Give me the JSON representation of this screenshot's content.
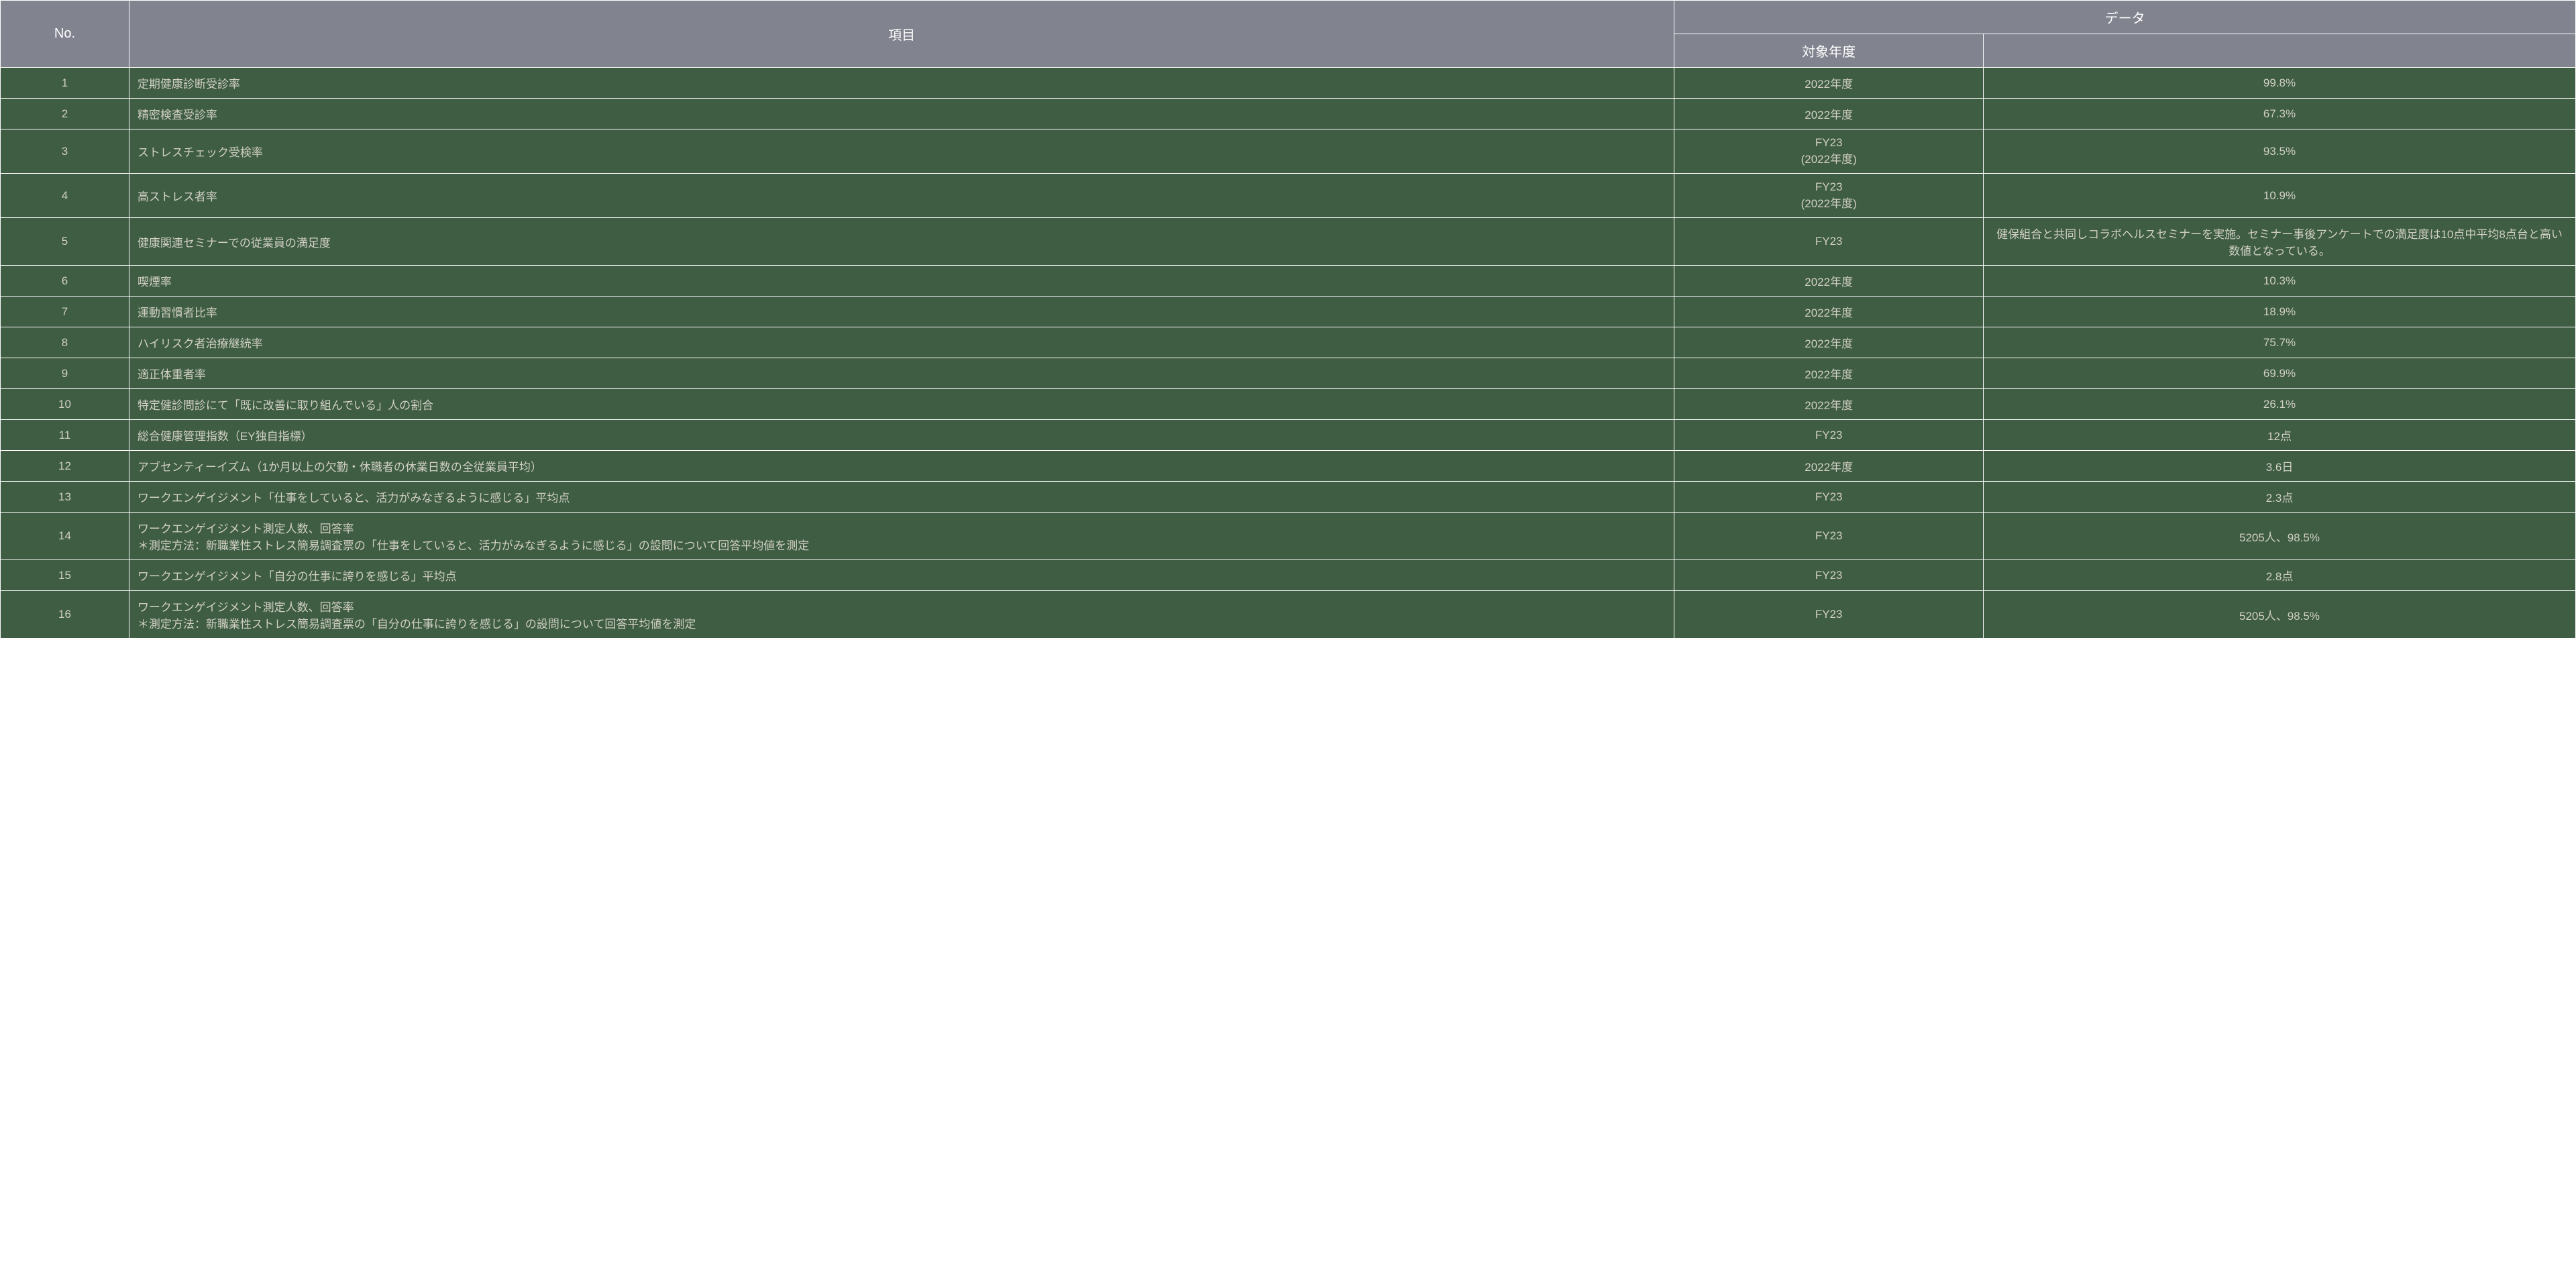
{
  "table": {
    "header": {
      "no": "No.",
      "item": "項目",
      "data_group": "データ",
      "year": "対象年度"
    },
    "colors": {
      "header_bg": "#81838f",
      "header_text": "#ffffff",
      "cell_bg": "#3e5d43",
      "cell_text": "#d1cfc3",
      "border": "#ffffff"
    },
    "rows": [
      {
        "no": "1",
        "item": "定期健康診断受診率",
        "year": "2022年度",
        "data": "99.8%"
      },
      {
        "no": "2",
        "item": "精密検査受診率",
        "year": "2022年度",
        "data": "67.3%"
      },
      {
        "no": "3",
        "item": "ストレスチェック受検率",
        "year": "FY23",
        "year2": "(2022年度)",
        "data": "93.5%"
      },
      {
        "no": "4",
        "item": "高ストレス者率",
        "year": "FY23",
        "year2": "(2022年度)",
        "data": "10.9%"
      },
      {
        "no": "5",
        "item": "健康関連セミナーでの従業員の満足度",
        "year": "FY23",
        "data": "健保組合と共同しコラボヘルスセミナーを実施。セミナー事後アンケートでの満足度は10点中平均8点台と高い数値となっている。"
      },
      {
        "no": "6",
        "item": "喫煙率",
        "year": "2022年度",
        "data": "10.3%"
      },
      {
        "no": "7",
        "item": "運動習慣者比率",
        "year": "2022年度",
        "data": "18.9%"
      },
      {
        "no": "8",
        "item": "ハイリスク者治療継続率",
        "year": "2022年度",
        "data": "75.7%"
      },
      {
        "no": "9",
        "item": "適正体重者率",
        "year": "2022年度",
        "data": "69.9%"
      },
      {
        "no": "10",
        "item": "特定健診問診にて「既に改善に取り組んでいる」人の割合",
        "year": "2022年度",
        "data": "26.1%"
      },
      {
        "no": "11",
        "item": "総合健康管理指数（EY独自指標）",
        "year": "FY23",
        "data": "12点"
      },
      {
        "no": "12",
        "item": "アブセンティーイズム（1か月以上の欠勤・休職者の休業日数の全従業員平均）",
        "year": "2022年度",
        "data": "3.6日"
      },
      {
        "no": "13",
        "item": "ワークエンゲイジメント「仕事をしていると、活力がみなぎるように感じる」平均点",
        "year": "FY23",
        "data": "2.3点"
      },
      {
        "no": "14",
        "item": "ワークエンゲイジメント測定人数、回答率\n＊測定方法：新職業性ストレス簡易調査票の「仕事をしていると、活力がみなぎるように感じる」の設問について回答平均値を測定",
        "year": "FY23",
        "data": "5205人、98.5%"
      },
      {
        "no": "15",
        "item": "ワークエンゲイジメント「自分の仕事に誇りを感じる」平均点",
        "year": "FY23",
        "data": "2.8点"
      },
      {
        "no": "16",
        "item": "ワークエンゲイジメント測定人数、回答率\n＊測定方法：新職業性ストレス簡易調査票の「自分の仕事に誇りを感じる」の設問について回答平均値を測定",
        "year": "FY23",
        "data": "5205人、98.5%"
      }
    ]
  }
}
